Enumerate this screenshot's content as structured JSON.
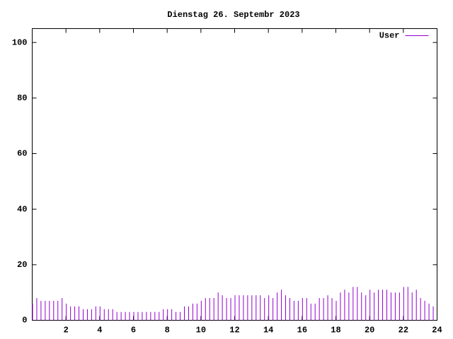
{
  "chart_data": {
    "type": "impulse",
    "title": "Dienstag 26. Septembr 2023",
    "series": [
      {
        "name": "User",
        "color": "#9400d3",
        "x": [
          0,
          0.25,
          0.5,
          0.75,
          1,
          1.25,
          1.5,
          1.75,
          2,
          2.25,
          2.5,
          2.75,
          3,
          3.25,
          3.5,
          3.75,
          4,
          4.25,
          4.5,
          4.75,
          5,
          5.25,
          5.5,
          5.75,
          6,
          6.25,
          6.5,
          6.75,
          7,
          7.25,
          7.5,
          7.75,
          8,
          8.25,
          8.5,
          8.75,
          9,
          9.25,
          9.5,
          9.75,
          10,
          10.25,
          10.5,
          10.75,
          11,
          11.25,
          11.5,
          11.75,
          12,
          12.25,
          12.5,
          12.75,
          13,
          13.25,
          13.5,
          13.75,
          14,
          14.25,
          14.5,
          14.75,
          15,
          15.25,
          15.5,
          15.75,
          16,
          16.25,
          16.5,
          16.75,
          17,
          17.25,
          17.5,
          17.75,
          18,
          18.25,
          18.5,
          18.75,
          19,
          19.25,
          19.5,
          19.75,
          20,
          20.25,
          20.5,
          20.75,
          21,
          21.25,
          21.5,
          21.75,
          22,
          22.25,
          22.5,
          22.75,
          23,
          23.25,
          23.5,
          23.75
        ],
        "values": [
          6,
          8,
          7,
          7,
          7,
          7,
          7,
          8,
          6,
          5,
          5,
          5,
          4,
          4,
          4,
          5,
          5,
          4,
          4,
          4,
          3,
          3,
          3,
          3,
          3,
          3,
          3,
          3,
          3,
          3,
          3,
          4,
          4,
          4,
          3,
          3,
          5,
          5,
          6,
          6,
          7,
          8,
          8,
          8,
          10,
          9,
          8,
          8,
          9,
          9,
          9,
          9,
          9,
          9,
          9,
          8,
          9,
          8,
          10,
          11,
          9,
          8,
          7,
          7,
          8,
          8,
          6,
          6,
          8,
          8,
          9,
          8,
          7,
          10,
          11,
          10,
          12,
          12,
          10,
          9,
          11,
          10,
          11,
          11,
          11,
          10,
          10,
          10,
          12,
          12,
          10,
          11,
          8,
          7,
          6,
          5
        ]
      }
    ],
    "xlim": [
      0,
      24
    ],
    "xticks": [
      2,
      4,
      6,
      8,
      10,
      12,
      14,
      16,
      18,
      20,
      22,
      24
    ],
    "ylim": [
      0,
      105
    ],
    "yticks": [
      0,
      20,
      40,
      60,
      80,
      100
    ],
    "legend": "top-right"
  }
}
